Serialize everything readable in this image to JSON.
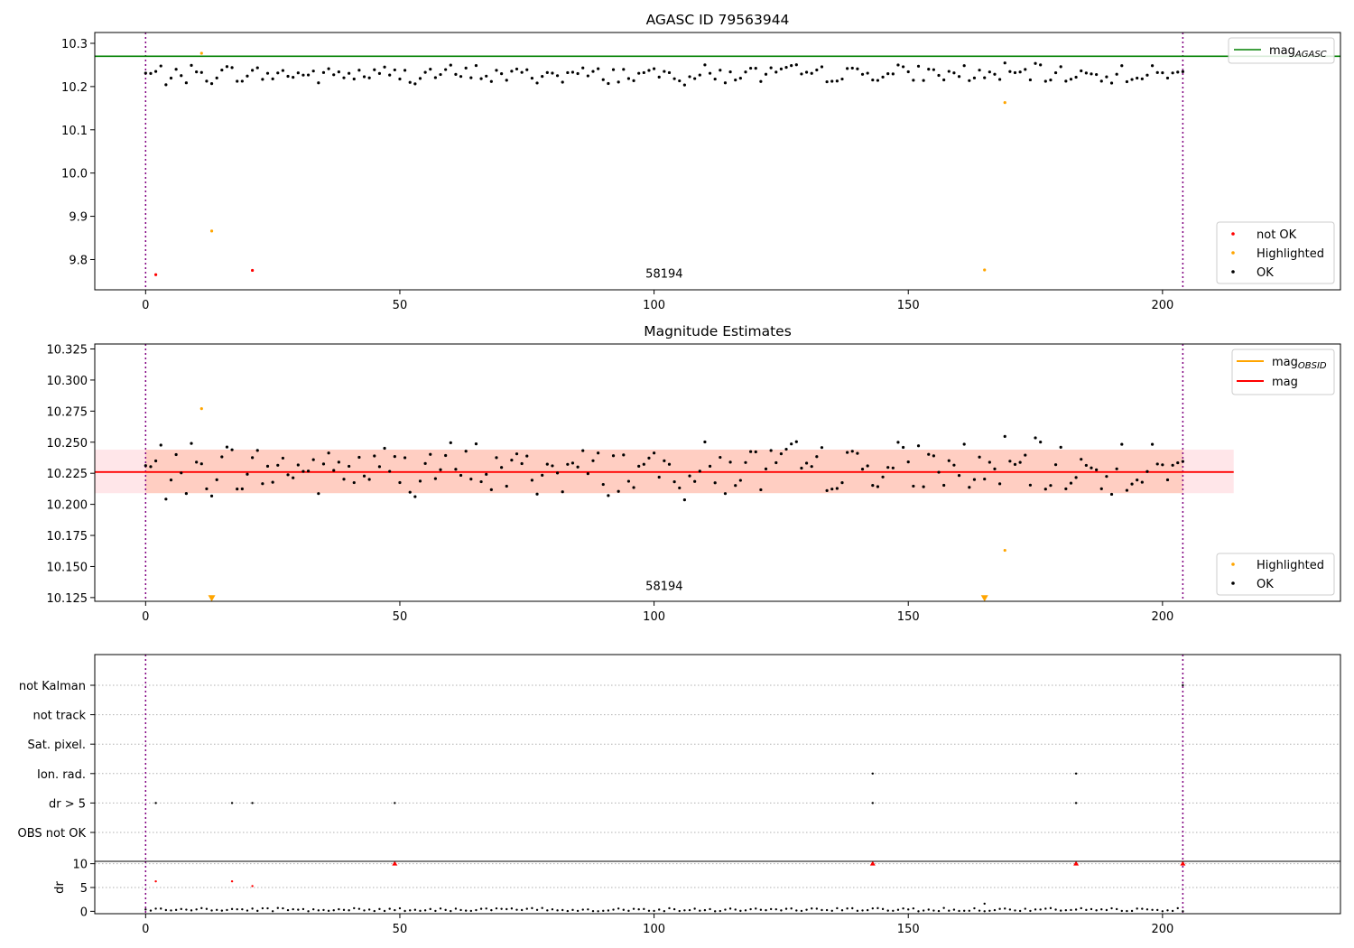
{
  "chart_data": [
    {
      "id": "top",
      "type": "scatter",
      "title": "AGASC ID 79563944",
      "xlim": [
        -10,
        235
      ],
      "ylim": [
        9.73,
        10.325
      ],
      "xticks": [
        0,
        50,
        100,
        150,
        200
      ],
      "yticks": [
        9.8,
        9.9,
        10.0,
        10.1,
        10.2,
        10.3
      ],
      "ytick_labels": [
        "9.8",
        "9.9",
        "10.0",
        "10.1",
        "10.2",
        "10.3"
      ],
      "obs_boundaries": [
        0,
        204
      ],
      "obsid_label": {
        "text": "58194",
        "x": 102,
        "y": 9.758
      },
      "hline": {
        "name": "mag_AGASC",
        "label_main": "mag",
        "label_sub": "AGASC",
        "y": 10.27,
        "color": "#008000"
      },
      "legend_line": {
        "position": "top-right",
        "label_main": "mag",
        "label_sub": "AGASC",
        "color": "#008000"
      },
      "legend_points": {
        "position": "bottom-right",
        "entries": [
          {
            "label": "not OK",
            "color": "#ff0000"
          },
          {
            "label": "Highlighted",
            "color": "#ffa500"
          },
          {
            "label": "OK",
            "color": "#000000"
          }
        ]
      },
      "series": [
        {
          "name": "not OK",
          "color": "#ff0000",
          "x": [
            2,
            21
          ],
          "y": [
            9.765,
            9.775
          ]
        },
        {
          "name": "Highlighted",
          "color": "#ffa500",
          "x": [
            11,
            13,
            165,
            169
          ],
          "y": [
            10.277,
            9.866,
            9.776,
            10.163
          ]
        },
        {
          "name": "OK",
          "color": "#000000",
          "type": "walk",
          "x0": 0,
          "x1": 204,
          "base": 10.228,
          "seed": 7,
          "amp": 0.028
        }
      ]
    },
    {
      "id": "middle",
      "type": "scatter",
      "title": "Magnitude Estimates",
      "xlim": [
        -10,
        235
      ],
      "ylim": [
        10.122,
        10.329
      ],
      "xticks": [
        0,
        50,
        100,
        150,
        200
      ],
      "yticks": [
        10.125,
        10.15,
        10.175,
        10.2,
        10.225,
        10.25,
        10.275,
        10.3,
        10.325
      ],
      "ytick_labels": [
        "10.125",
        "10.150",
        "10.175",
        "10.200",
        "10.225",
        "10.250",
        "10.275",
        "10.300",
        "10.325"
      ],
      "obs_boundaries": [
        0,
        204
      ],
      "obsid_label": {
        "text": "58194",
        "x": 102,
        "y": 10.131
      },
      "mag_line": {
        "y": 10.226,
        "x0": -10,
        "x1": 214,
        "color": "#ff0000"
      },
      "bands": [
        {
          "y0": 10.209,
          "y1": 10.244,
          "x0": -10,
          "x1": 214,
          "color": "#ffb6c1"
        },
        {
          "y0": 10.209,
          "y1": 10.244,
          "x0": 0,
          "x1": 204,
          "color": "#ffa07a"
        }
      ],
      "legend_lines": {
        "position": "top-right",
        "entries": [
          {
            "label_main": "mag",
            "label_sub": "OBSID",
            "color": "#ffa500"
          },
          {
            "label_main": "mag",
            "label_sub": "",
            "color": "#ff0000"
          }
        ]
      },
      "legend_points": {
        "position": "bottom-right",
        "entries": [
          {
            "label": "Highlighted",
            "color": "#ffa500"
          },
          {
            "label": "OK",
            "color": "#000000"
          }
        ]
      },
      "series": [
        {
          "name": "Highlighted",
          "color": "#ffa500",
          "x": [
            11,
            169
          ],
          "y": [
            10.277,
            10.163
          ]
        },
        {
          "name": "Highlighted (out of range)",
          "color": "#ffa500",
          "marker": "triangle-down",
          "x": [
            13,
            165
          ],
          "y": [
            10.124,
            10.124
          ]
        },
        {
          "name": "OK",
          "color": "#000000",
          "type": "walk",
          "x0": 0,
          "x1": 204,
          "base": 10.228,
          "seed": 7,
          "amp": 0.028
        }
      ]
    },
    {
      "id": "flags",
      "type": "scatter",
      "xlim": [
        -10,
        235
      ],
      "categories": [
        "not Kalman",
        "not track",
        "Sat. pixel.",
        "Ion. rad.",
        "dr > 5",
        "OBS not OK"
      ],
      "obs_boundaries": [
        0,
        204
      ],
      "series": [
        {
          "name": "Ion. rad.",
          "color": "#000000",
          "x": [
            143,
            183
          ]
        },
        {
          "name": "dr > 5",
          "color": "#000000",
          "x": [
            2,
            17,
            21,
            49,
            143,
            183
          ]
        },
        {
          "name": "not Kalman",
          "color": "#000000",
          "x": [
            204
          ]
        }
      ]
    },
    {
      "id": "dr",
      "type": "scatter",
      "ylabel": "dr",
      "xlim": [
        -10,
        235
      ],
      "ylim": [
        -0.5,
        10.5
      ],
      "xticks": [
        0,
        50,
        100,
        150,
        200
      ],
      "yticks": [
        0,
        5,
        10
      ],
      "ytick_labels": [
        "0",
        "5",
        "10"
      ],
      "obs_boundaries": [
        0,
        204
      ],
      "series": [
        {
          "name": "dr",
          "color": "#000000",
          "type": "noise",
          "x0": 0,
          "x1": 204,
          "base": 0.35,
          "amp": 0.35,
          "seed": 3
        },
        {
          "name": "dr > 5",
          "color": "#ff0000",
          "x": [
            2,
            17,
            21
          ],
          "y": [
            6.3,
            6.3,
            5.3
          ]
        },
        {
          "name": "dr clipped",
          "color": "#ff0000",
          "marker": "triangle-up",
          "x": [
            49,
            143,
            183,
            204
          ],
          "y": [
            10,
            10,
            10,
            10
          ]
        }
      ]
    }
  ]
}
